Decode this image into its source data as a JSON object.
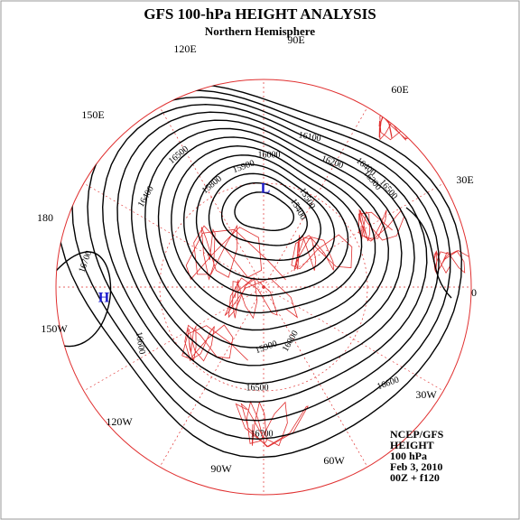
{
  "header": {
    "title": "GFS 100-hPa HEIGHT ANALYSIS",
    "subtitle": "Northern Hemisphere"
  },
  "map": {
    "meridian_labels": [
      "90E",
      "60E",
      "30E",
      "0",
      "30W",
      "60W",
      "90W",
      "120W",
      "150W",
      "180",
      "150E",
      "120E"
    ],
    "centers": [
      {
        "label": "L"
      },
      {
        "label": "H"
      }
    ],
    "contour_labels": [
      16500,
      16400,
      15800,
      15900,
      16000,
      16100,
      16200,
      16400,
      16500,
      15500,
      15400,
      16700,
      16600,
      16700,
      16500,
      16600,
      15900,
      16000,
      16300
    ]
  },
  "info": [
    "NCEP/GFS",
    "HEIGHT",
    "100 hPa",
    "Feb 3, 2010",
    "00Z + f120"
  ]
}
